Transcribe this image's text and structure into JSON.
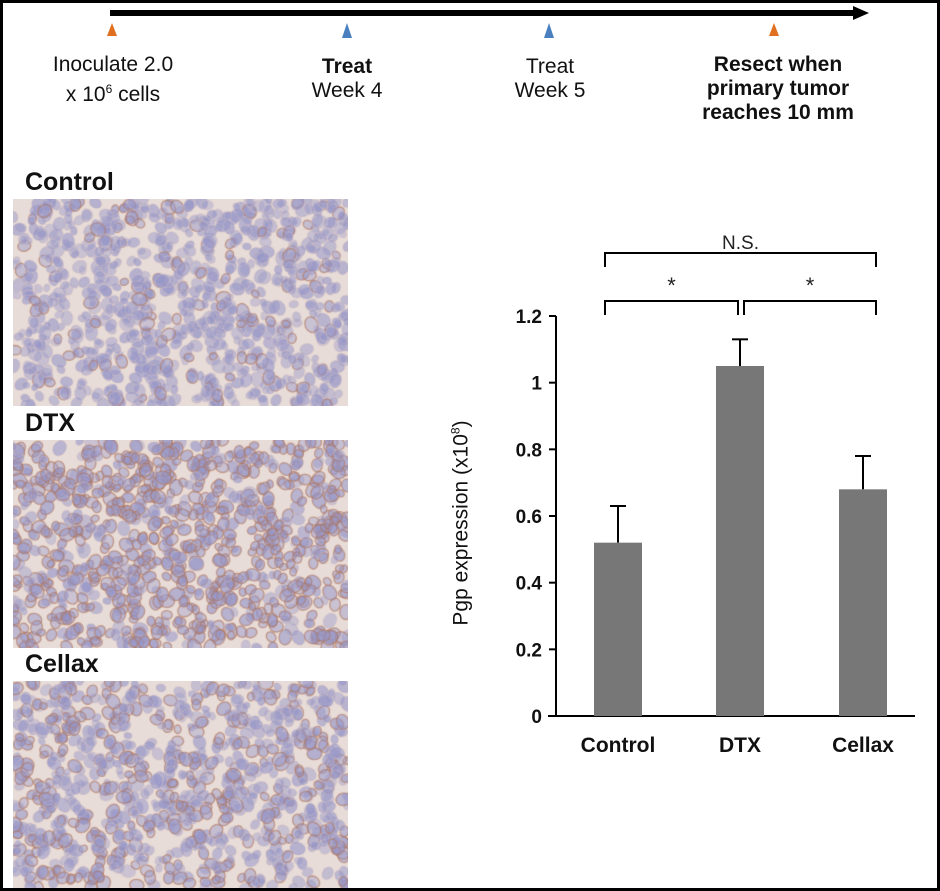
{
  "timeline": {
    "events": [
      {
        "label_line1": "Inoculate 2.0",
        "label_line2": "x 10",
        "sup": "6",
        "label_line2_end": " cells",
        "marker_color": "#e07020"
      },
      {
        "label_line1": "Treat",
        "label_line2": "Week 4",
        "marker_color": "#4a80c0"
      },
      {
        "label_line1": "Treat",
        "label_line2": "Week 5",
        "marker_color": "#4a80c0"
      },
      {
        "label_line1": "Resect when",
        "label_line2": "primary tumor",
        "label_line3": "reaches 10 mm",
        "marker_color": "#e07020"
      }
    ]
  },
  "panels": [
    {
      "label": "Control",
      "stain": "light"
    },
    {
      "label": "DTX",
      "stain": "strong"
    },
    {
      "label": "Cellax",
      "stain": "moderate"
    }
  ],
  "chart_data": {
    "type": "bar",
    "categories": [
      "Control",
      "DTX",
      "Cellax"
    ],
    "values": [
      0.52,
      1.05,
      0.68
    ],
    "error_upper": [
      0.63,
      1.13,
      0.78
    ],
    "ylabel": "Pgp expression (x10",
    "ylabel_sup": "8",
    "ylabel_end": ")",
    "ylim": [
      0,
      1.2
    ],
    "yticks": [
      "0",
      "0.2",
      "0.4",
      "0.6",
      "0.8",
      "1",
      "1.2"
    ],
    "bar_color": "#777777",
    "grid": false,
    "significance": [
      {
        "from": "Control",
        "to": "Cellax",
        "label": "N.S."
      },
      {
        "from": "Control",
        "to": "DTX",
        "label": "*"
      },
      {
        "from": "DTX",
        "to": "Cellax",
        "label": "*"
      }
    ]
  }
}
